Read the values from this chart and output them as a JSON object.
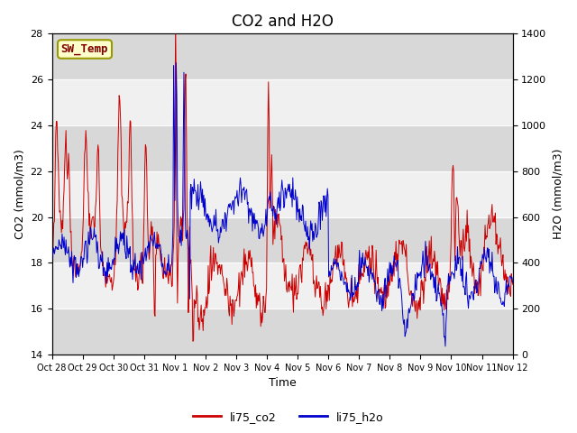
{
  "title": "CO2 and H2O",
  "xlabel": "Time",
  "ylabel_left": "CO2 (mmol/m3)",
  "ylabel_right": "H2O (mmol/m3)",
  "ylim_left": [
    14,
    28
  ],
  "ylim_right": [
    0,
    1400
  ],
  "yticks_left": [
    14,
    16,
    18,
    20,
    22,
    24,
    26,
    28
  ],
  "yticks_right": [
    0,
    200,
    400,
    600,
    800,
    1000,
    1200,
    1400
  ],
  "xtick_labels": [
    "Oct 28",
    "Oct 29",
    "Oct 30",
    "Oct 31",
    "Nov 1",
    "Nov 2",
    "Nov 3",
    "Nov 4",
    "Nov 5",
    "Nov 6",
    "Nov 7",
    "Nov 8",
    "Nov 9",
    "Nov 10",
    "Nov 11",
    "Nov 12"
  ],
  "co2_color": "#cc0000",
  "h2o_color": "#0000cc",
  "legend_label_co2": "li75_co2",
  "legend_label_h2o": "li75_h2o",
  "sw_temp_box_color": "#ffffcc",
  "sw_temp_text_color": "#800000",
  "sw_temp_border_color": "#999900",
  "background_color": "#ffffff",
  "plot_bg_color": "#d8d8d8",
  "band_color": "#f0f0f0",
  "title_fontsize": 12,
  "axis_label_fontsize": 9,
  "tick_fontsize": 8
}
